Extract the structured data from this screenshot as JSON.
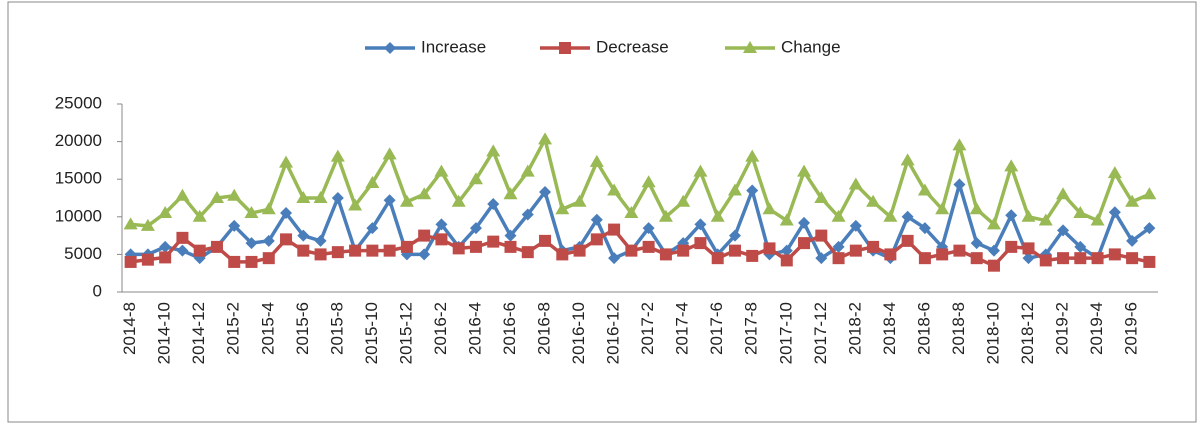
{
  "chart_data": {
    "type": "line",
    "categories": [
      "2014-8",
      null,
      "2014-10",
      null,
      "2014-12",
      null,
      "2015-2",
      null,
      "2015-4",
      null,
      "2015-6",
      null,
      "2015-8",
      null,
      "2015-10",
      null,
      "2015-12",
      null,
      "2016-2",
      null,
      "2016-4",
      null,
      "2016-6",
      null,
      "2016-8",
      null,
      "2016-10",
      null,
      "2016-12",
      null,
      "2017-2",
      null,
      "2017-4",
      null,
      "2017-6",
      null,
      "2017-8",
      null,
      "2017-10",
      null,
      "2017-12",
      null,
      "2018-2",
      null,
      "2018-4",
      null,
      "2018-6",
      null,
      "2018-8",
      null,
      "2018-10",
      null,
      "2018-12",
      null,
      "2019-2",
      null,
      "2019-4",
      null,
      "2019-6",
      null
    ],
    "series": [
      {
        "name": "Increase",
        "color": "#4a7ebb",
        "marker": "diamond",
        "values": [
          5000,
          5000,
          6000,
          5500,
          4500,
          6000,
          8800,
          6500,
          6800,
          10500,
          7500,
          6800,
          12500,
          5500,
          8500,
          12200,
          5000,
          5000,
          9000,
          6000,
          8500,
          11700,
          7500,
          10300,
          13300,
          5500,
          6000,
          9600,
          4500,
          5500,
          8500,
          5000,
          6500,
          9000,
          5000,
          7500,
          13500,
          5000,
          5500,
          9200,
          4500,
          6000,
          8800,
          5500,
          4500,
          10000,
          8500,
          6000,
          14300,
          6500,
          5500,
          10200,
          4500,
          5000,
          8200,
          6000,
          4500,
          10600,
          6800,
          8500
        ]
      },
      {
        "name": "Decrease",
        "color": "#be4b48",
        "marker": "square",
        "values": [
          4000,
          4300,
          4600,
          7200,
          5500,
          6000,
          4000,
          4000,
          4500,
          7000,
          5500,
          5000,
          5300,
          5500,
          5500,
          5500,
          6000,
          7500,
          7000,
          5800,
          6000,
          6700,
          6000,
          5300,
          6800,
          5000,
          5500,
          7000,
          8300,
          5500,
          6000,
          5000,
          5500,
          6500,
          4500,
          5500,
          4800,
          5800,
          4200,
          6500,
          7500,
          4500,
          5500,
          6000,
          5000,
          6800,
          4500,
          5000,
          5500,
          4500,
          3500,
          6000,
          5800,
          4200,
          4500,
          4500,
          4500,
          5000,
          4500,
          4000
        ]
      },
      {
        "name": "Change",
        "color": "#98b954",
        "marker": "triangle",
        "values": [
          9000,
          8800,
          10500,
          12800,
          10000,
          12500,
          12800,
          10500,
          11000,
          17200,
          12500,
          12500,
          18000,
          11500,
          14500,
          18300,
          12000,
          13000,
          16000,
          12000,
          15000,
          18700,
          13000,
          16000,
          20300,
          11000,
          12000,
          17300,
          13500,
          10500,
          14600,
          10000,
          12000,
          16000,
          10000,
          13500,
          18000,
          11000,
          9500,
          16000,
          12500,
          10000,
          14300,
          12000,
          10000,
          17500,
          13500,
          11000,
          19500,
          11000,
          9000,
          16700,
          10000,
          9500,
          13000,
          10500,
          9500,
          15800,
          12000,
          13000
        ]
      }
    ],
    "ylim": [
      0,
      25000
    ],
    "yticks": [
      0,
      5000,
      10000,
      15000,
      20000,
      25000
    ],
    "grid": false,
    "legend": "top"
  }
}
